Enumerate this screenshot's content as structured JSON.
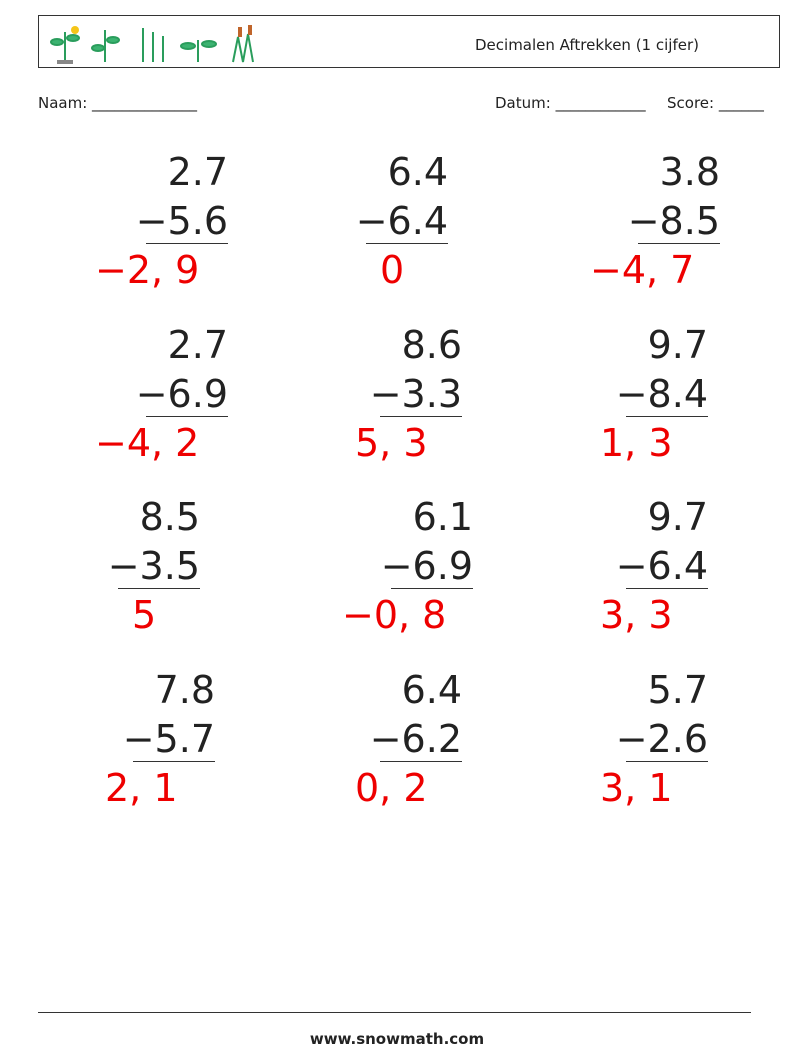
{
  "header": {
    "title": "Decimalen Aftrekken (1 cijfer)"
  },
  "fields": {
    "name": "Naam: ______________",
    "date": "Datum: ____________",
    "score": "Score: ______"
  },
  "problems": [
    [
      {
        "top": "2.7",
        "bottom": "−5.6",
        "answer": "−2, 9"
      },
      {
        "top": "6.4",
        "bottom": "−6.4",
        "answer": "0"
      },
      {
        "top": "3.8",
        "bottom": "−8.5",
        "answer": "−4, 7"
      }
    ],
    [
      {
        "top": "2.7",
        "bottom": "−6.9",
        "answer": "−4, 2"
      },
      {
        "top": "8.6",
        "bottom": "−3.3",
        "answer": "5, 3"
      },
      {
        "top": "9.7",
        "bottom": "−8.4",
        "answer": "1, 3"
      }
    ],
    [
      {
        "top": "8.5",
        "bottom": "−3.5",
        "answer": "5"
      },
      {
        "top": "6.1",
        "bottom": "−6.9",
        "answer": "−0, 8"
      },
      {
        "top": "9.7",
        "bottom": "−6.4",
        "answer": "3, 3"
      }
    ],
    [
      {
        "top": "7.8",
        "bottom": "−5.7",
        "answer": "2, 1"
      },
      {
        "top": "6.4",
        "bottom": "−6.2",
        "answer": "0, 2"
      },
      {
        "top": "5.7",
        "bottom": "−2.6",
        "answer": "3, 1"
      }
    ]
  ],
  "footer": {
    "site": "www.snowmath.com"
  }
}
